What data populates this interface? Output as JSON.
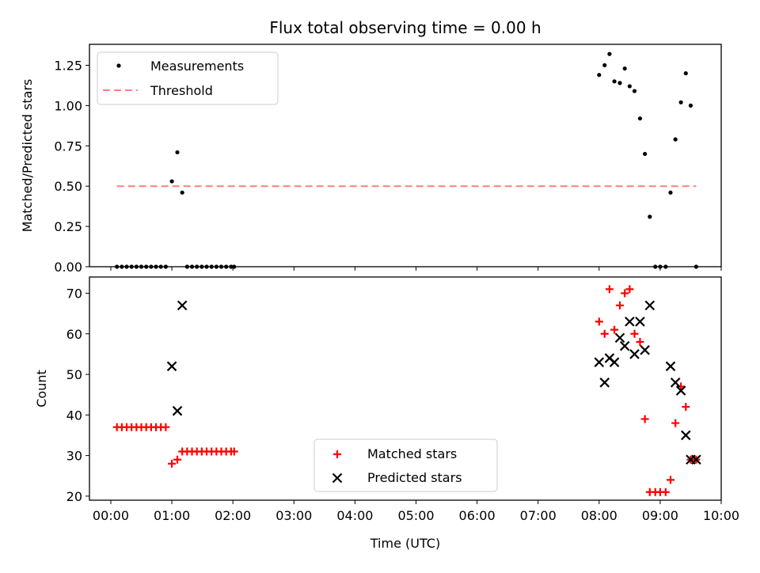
{
  "title": "Flux total observing time = 0.00 h",
  "colors": {
    "measurement": "#000000",
    "threshold": "#ff7f7f",
    "matched": "#ff0000",
    "predicted": "#000000"
  },
  "chart_data": [
    {
      "type": "scatter",
      "title": "Flux total observing time = 0.00 h",
      "xlabel": "",
      "ylabel": "Matched/Predicted stars",
      "xlim": [
        -0.35,
        10.0
      ],
      "ylim": [
        0,
        1.38
      ],
      "x_unit": "hours (UTC)",
      "yticks": [
        "0.00",
        "0.25",
        "0.50",
        "0.75",
        "1.00",
        "1.25"
      ],
      "legend_position": "upper left",
      "legend": [
        "Measurements",
        "Threshold"
      ],
      "series": [
        {
          "name": "Measurements",
          "marker": "dot",
          "x": [
            0.1,
            0.18,
            0.26,
            0.34,
            0.42,
            0.5,
            0.58,
            0.66,
            0.74,
            0.82,
            0.9,
            1.0,
            1.09,
            1.17,
            1.25,
            1.33,
            1.41,
            1.49,
            1.57,
            1.65,
            1.73,
            1.81,
            1.89,
            1.97,
            2.02,
            8.0,
            8.09,
            8.17,
            8.25,
            8.34,
            8.42,
            8.5,
            8.58,
            8.67,
            8.75,
            8.83,
            8.92,
            9.0,
            9.09,
            9.17,
            9.25,
            9.34,
            9.42,
            9.5,
            9.59
          ],
          "y": [
            0,
            0,
            0,
            0,
            0,
            0,
            0,
            0,
            0,
            0,
            0,
            0.53,
            0.71,
            0.46,
            0,
            0,
            0,
            0,
            0,
            0,
            0,
            0,
            0,
            0,
            0,
            1.19,
            1.25,
            1.32,
            1.15,
            1.14,
            1.23,
            1.12,
            1.09,
            0.92,
            0.7,
            0.31,
            0,
            0,
            0,
            0.46,
            0.79,
            1.02,
            1.2,
            1.0,
            0
          ]
        },
        {
          "name": "Threshold",
          "line": "dashed",
          "x": [
            0.1,
            9.59
          ],
          "y": [
            0.5,
            0.5
          ]
        }
      ]
    },
    {
      "type": "scatter",
      "title": "",
      "xlabel": "Time (UTC)",
      "ylabel": "Count",
      "xlim": [
        -0.35,
        10.0
      ],
      "ylim": [
        19,
        74
      ],
      "yticks": [
        "20",
        "30",
        "40",
        "50",
        "60",
        "70"
      ],
      "xticks": [
        "00:00",
        "01:00",
        "02:00",
        "03:00",
        "04:00",
        "05:00",
        "06:00",
        "07:00",
        "08:00",
        "09:00",
        "10:00"
      ],
      "legend_position": "lower center",
      "legend": [
        "Matched stars",
        "Predicted stars"
      ],
      "series": [
        {
          "name": "Matched stars",
          "marker": "+",
          "x": [
            0.1,
            0.18,
            0.26,
            0.34,
            0.42,
            0.5,
            0.58,
            0.66,
            0.74,
            0.82,
            0.9,
            1.0,
            1.09,
            1.17,
            1.25,
            1.33,
            1.41,
            1.49,
            1.57,
            1.65,
            1.73,
            1.81,
            1.89,
            1.97,
            2.02,
            8.0,
            8.09,
            8.17,
            8.25,
            8.34,
            8.42,
            8.5,
            8.58,
            8.67,
            8.75,
            8.83,
            8.92,
            9.0,
            9.09,
            9.17,
            9.25,
            9.34,
            9.42,
            9.5,
            9.59
          ],
          "y": [
            37,
            37,
            37,
            37,
            37,
            37,
            37,
            37,
            37,
            37,
            37,
            28,
            29,
            31,
            31,
            31,
            31,
            31,
            31,
            31,
            31,
            31,
            31,
            31,
            31,
            63,
            60,
            71,
            61,
            67,
            70,
            71,
            60,
            58,
            39,
            21,
            21,
            21,
            21,
            24,
            38,
            47,
            42,
            29,
            29
          ]
        },
        {
          "name": "Predicted stars",
          "marker": "x",
          "x": [
            1.0,
            1.09,
            1.17,
            8.0,
            8.09,
            8.17,
            8.25,
            8.34,
            8.42,
            8.5,
            8.58,
            8.67,
            8.75,
            8.83,
            9.17,
            9.25,
            9.34,
            9.42,
            9.5,
            9.59
          ],
          "y": [
            52,
            41,
            67,
            53,
            48,
            54,
            53,
            59,
            57,
            63,
            55,
            63,
            56,
            67,
            52,
            48,
            46,
            35,
            29,
            29
          ]
        }
      ]
    }
  ]
}
